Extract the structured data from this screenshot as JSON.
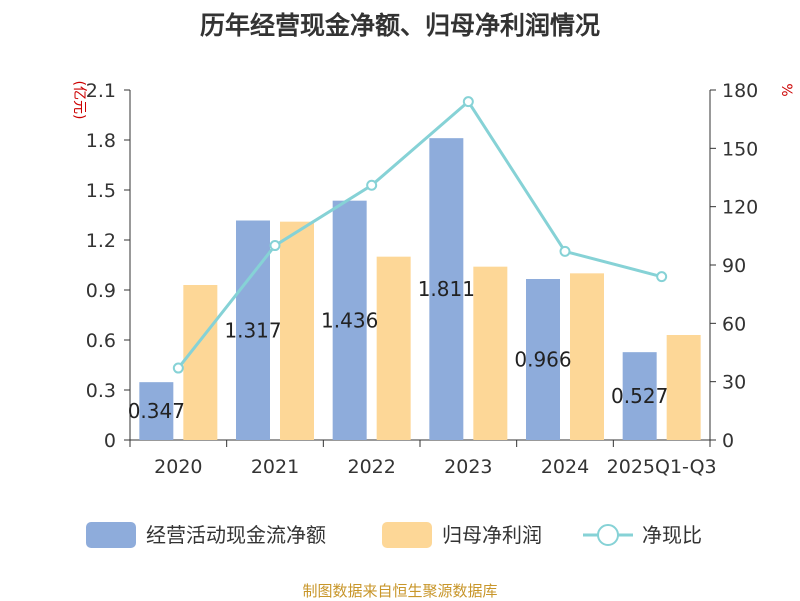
{
  "chart_data": {
    "type": "bar",
    "title": "历年经营现金净额、归母净利润情况",
    "categories": [
      "2020",
      "2021",
      "2022",
      "2023",
      "2024",
      "2025Q1-Q3"
    ],
    "y_left_unit": "(亿元)",
    "y_right_unit": "%",
    "y_left_lim": [
      0,
      2.1
    ],
    "y_left_ticks": [
      "0",
      "0.3",
      "0.6",
      "0.9",
      "1.2",
      "1.5",
      "1.8",
      "2.1"
    ],
    "y_right_lim": [
      0,
      180
    ],
    "y_right_ticks": [
      "0",
      "30",
      "60",
      "90",
      "120",
      "150",
      "180"
    ],
    "series": [
      {
        "name": "经营活动现金流净额",
        "type": "bar",
        "axis": "left",
        "values": [
          0.347,
          1.317,
          1.436,
          1.811,
          0.966,
          0.527
        ],
        "labels": [
          "0.347",
          "1.317",
          "1.436",
          "1.811",
          "0.966",
          "0.527"
        ]
      },
      {
        "name": "归母净利润",
        "type": "bar",
        "axis": "left",
        "values": [
          0.93,
          1.31,
          1.1,
          1.04,
          1.0,
          0.63
        ]
      },
      {
        "name": "净现比",
        "type": "line",
        "axis": "right",
        "values": [
          37,
          100,
          131,
          174,
          97,
          84
        ]
      }
    ],
    "colors": {
      "cash_flow": "#8eacdb",
      "net_profit": "#fdd797",
      "ratio": "#86d2d6",
      "unit": "#cc0000",
      "source": "#c8962a"
    },
    "legend_position": "bottom",
    "grid": false
  },
  "source_note": "制图数据来自恒生聚源数据库"
}
